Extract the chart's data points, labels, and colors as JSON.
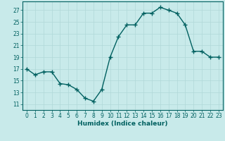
{
  "x": [
    0,
    1,
    2,
    3,
    4,
    5,
    6,
    7,
    8,
    9,
    10,
    11,
    12,
    13,
    14,
    15,
    16,
    17,
    18,
    19,
    20,
    21,
    22,
    23
  ],
  "y": [
    17,
    16,
    16.5,
    16.5,
    14.5,
    14.3,
    13.5,
    12,
    11.5,
    13.5,
    19,
    22.5,
    24.5,
    24.5,
    26.5,
    26.5,
    27.5,
    27,
    26.5,
    24.5,
    20,
    20,
    19,
    19
  ],
  "line_color": "#006060",
  "marker_color": "#006060",
  "bg_color": "#c8eaea",
  "grid_color": "#b0d8d8",
  "xlabel": "Humidex (Indice chaleur)",
  "yticks": [
    11,
    13,
    15,
    17,
    19,
    21,
    23,
    25,
    27
  ],
  "xlim": [
    -0.5,
    23.5
  ],
  "ylim": [
    10.0,
    28.5
  ],
  "xticks": [
    0,
    1,
    2,
    3,
    4,
    5,
    6,
    7,
    8,
    9,
    10,
    11,
    12,
    13,
    14,
    15,
    16,
    17,
    18,
    19,
    20,
    21,
    22,
    23
  ],
  "tick_fontsize": 5.5,
  "xlabel_fontsize": 6.5,
  "marker_size": 2.5,
  "line_width": 1.0
}
